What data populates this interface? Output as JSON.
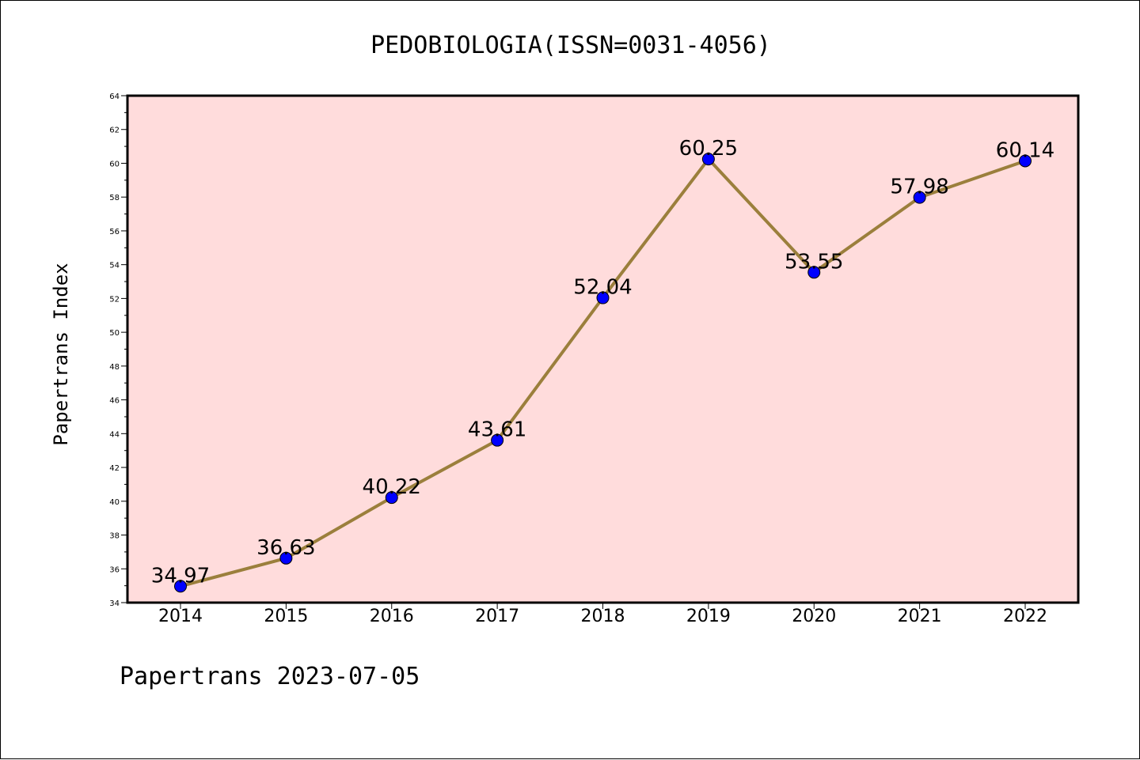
{
  "chart_data": {
    "type": "line",
    "title": "PEDOBIOLOGIA(ISSN=0031-4056)",
    "xlabel": "",
    "ylabel": "Papertrans Index",
    "categories": [
      "2014",
      "2015",
      "2016",
      "2017",
      "2018",
      "2019",
      "2020",
      "2021",
      "2022"
    ],
    "series": [
      {
        "values": [
          34.97,
          36.63,
          40.22,
          43.61,
          52.04,
          60.25,
          53.55,
          57.98,
          60.14
        ]
      }
    ],
    "data_labels": [
      "34.97",
      "36.63",
      "40.22",
      "43.61",
      "52.04",
      "60.25",
      "53.55",
      "57.98",
      "60.14"
    ],
    "ylim": [
      34,
      64
    ],
    "yticks": [
      "34",
      "36",
      "38",
      "40",
      "42",
      "44",
      "46",
      "48",
      "50",
      "52",
      "54",
      "56",
      "58",
      "60",
      "62",
      "64"
    ],
    "grid": false,
    "legend": "none",
    "colors": {
      "plot_background": "#ffdcdc",
      "line": "#9b7f3c",
      "marker": "#0000ff"
    }
  },
  "footer": "Papertrans 2023-07-05"
}
